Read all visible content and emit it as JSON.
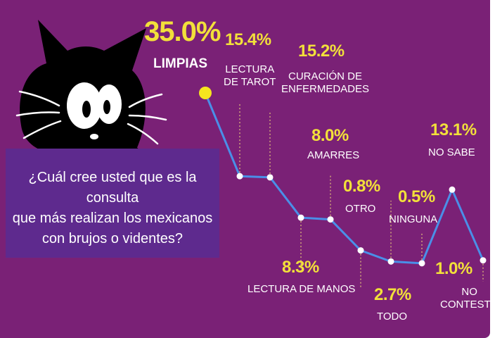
{
  "question": {
    "lines": [
      "¿Cuál cree usted que es la consulta",
      "que más realizan los mexicanos",
      "con brujos o videntes?"
    ]
  },
  "colors": {
    "background": "#7a2176",
    "question_box": "#5e2a8e",
    "line": "#4a8fe8",
    "value_text": "#f2e03a",
    "highlight_point": "#f5e51e"
  },
  "icons": {
    "mascot": "black-cat-icon"
  },
  "chart_data": {
    "type": "line",
    "categories": [
      "LIMPIAS",
      "LECTURA DE TAROT",
      "CURACIÓN DE ENFERMEDADES",
      "LECTURA DE MANOS",
      "AMARRES",
      "TODO",
      "OTRO",
      "NINGUNA",
      "NO SABE",
      "NO CONTESTÓ"
    ],
    "values": [
      35.0,
      15.4,
      15.2,
      8.3,
      8.0,
      2.7,
      0.8,
      0.5,
      13.1,
      1.0
    ],
    "value_labels": [
      "35.0%",
      "15.4%",
      "15.2%",
      "8.3%",
      "8.0%",
      "2.7%",
      "0.8%",
      "0.5%",
      "13.1%",
      "1.0%"
    ],
    "category_lines": [
      [
        "LIMPIAS"
      ],
      [
        "LECTURA",
        "DE TAROT"
      ],
      [
        "CURACIÓN DE",
        "ENFERMEDADES"
      ],
      [
        "LECTURA DE MANOS"
      ],
      [
        "AMARRES"
      ],
      [
        "TODO"
      ],
      [
        "OTRO"
      ],
      [
        "NINGUNA"
      ],
      [
        "NO SABE"
      ],
      [
        "NO",
        "CONTESTÓ"
      ]
    ],
    "unit": "%",
    "grid": false,
    "legend": "none"
  }
}
